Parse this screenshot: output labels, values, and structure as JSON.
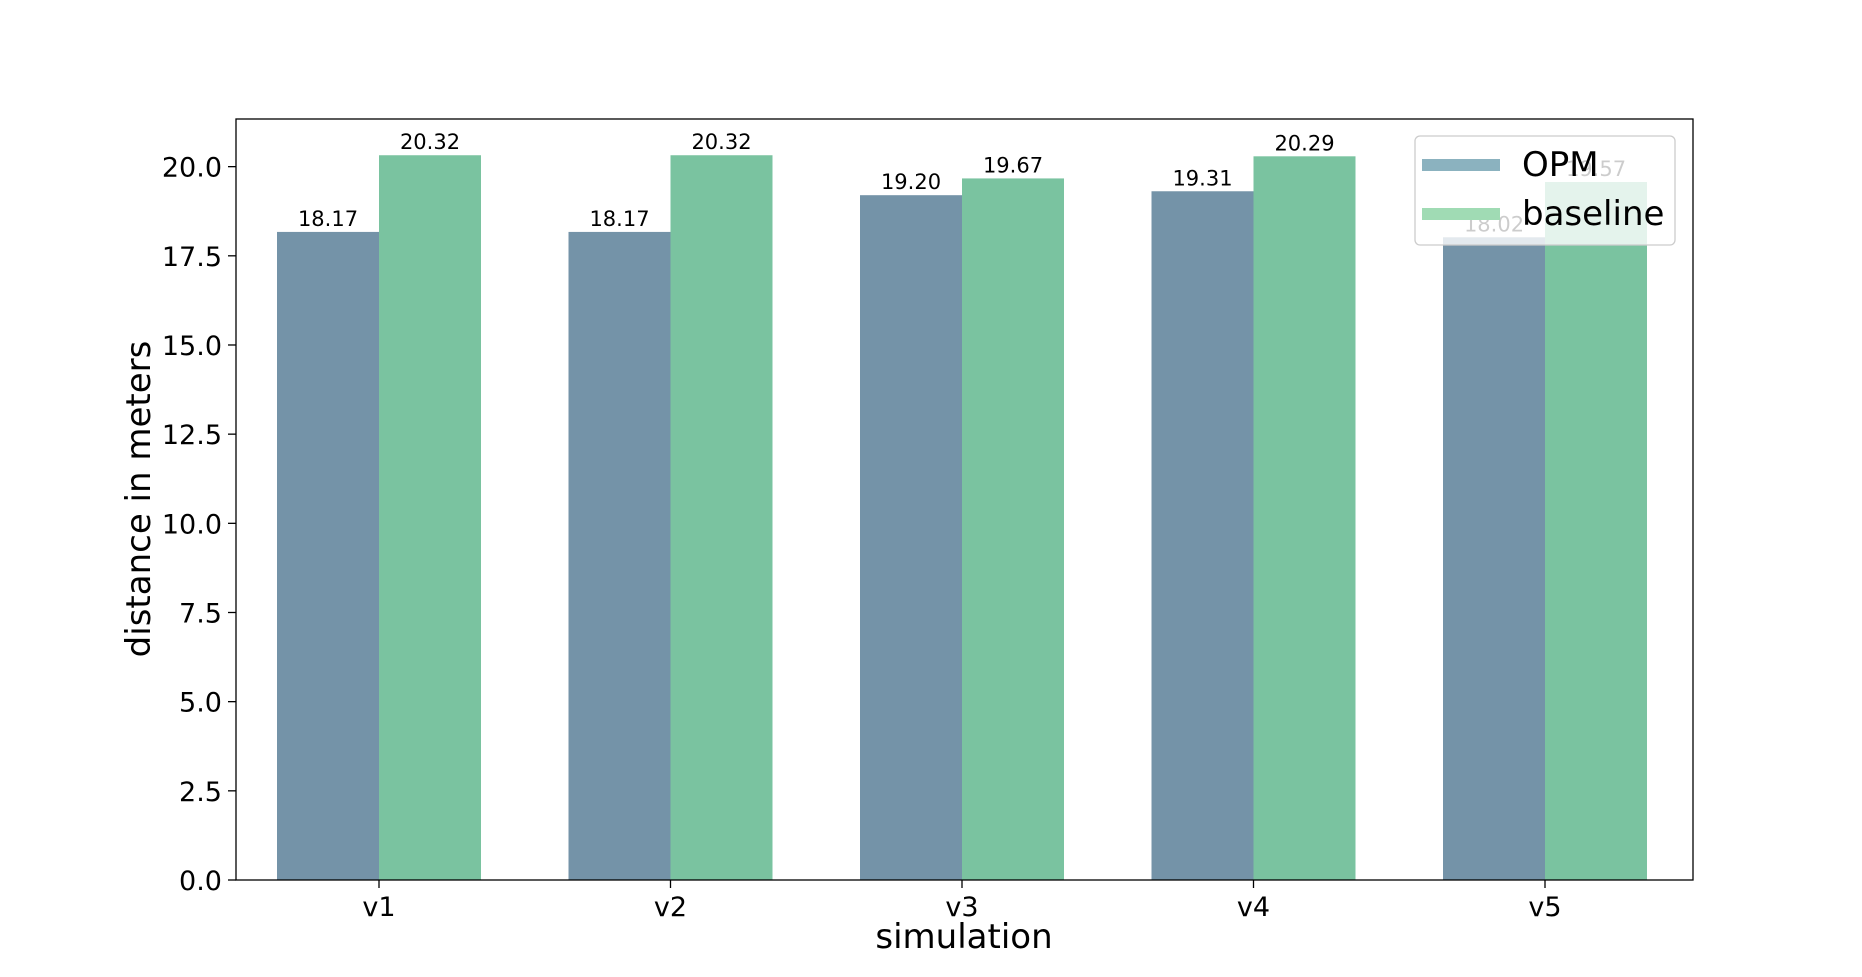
{
  "chart_data": {
    "type": "bar",
    "title": "",
    "xlabel": "simulation",
    "ylabel": "distance in meters",
    "categories": [
      "v1",
      "v2",
      "v3",
      "v4",
      "v5"
    ],
    "series": [
      {
        "name": "OPM",
        "values": [
          18.17,
          18.17,
          19.2,
          19.31,
          18.02
        ],
        "labels": [
          "18.17",
          "18.17",
          "19.20",
          "19.31",
          "18.02"
        ]
      },
      {
        "name": "baseline",
        "values": [
          20.32,
          20.32,
          19.67,
          20.29,
          19.57
        ],
        "labels": [
          "20.32",
          "20.32",
          "19.67",
          "20.29",
          "19.57"
        ]
      }
    ],
    "ylim": [
      0,
      21.336
    ],
    "yticks": [
      "0.0",
      "2.5",
      "5.0",
      "7.5",
      "10.0",
      "12.5",
      "15.0",
      "17.5",
      "20.0"
    ],
    "ytick_values": [
      0,
      2.5,
      5,
      7.5,
      10,
      12.5,
      15,
      17.5,
      20
    ],
    "grid": false,
    "legend_position": "top-right"
  },
  "colors": {
    "opm_bar": "#7493a8",
    "baseline_bar": "#7ac3a0",
    "opm_legend": "#8bb2bf",
    "baseline_legend": "#a0dbb4"
  }
}
